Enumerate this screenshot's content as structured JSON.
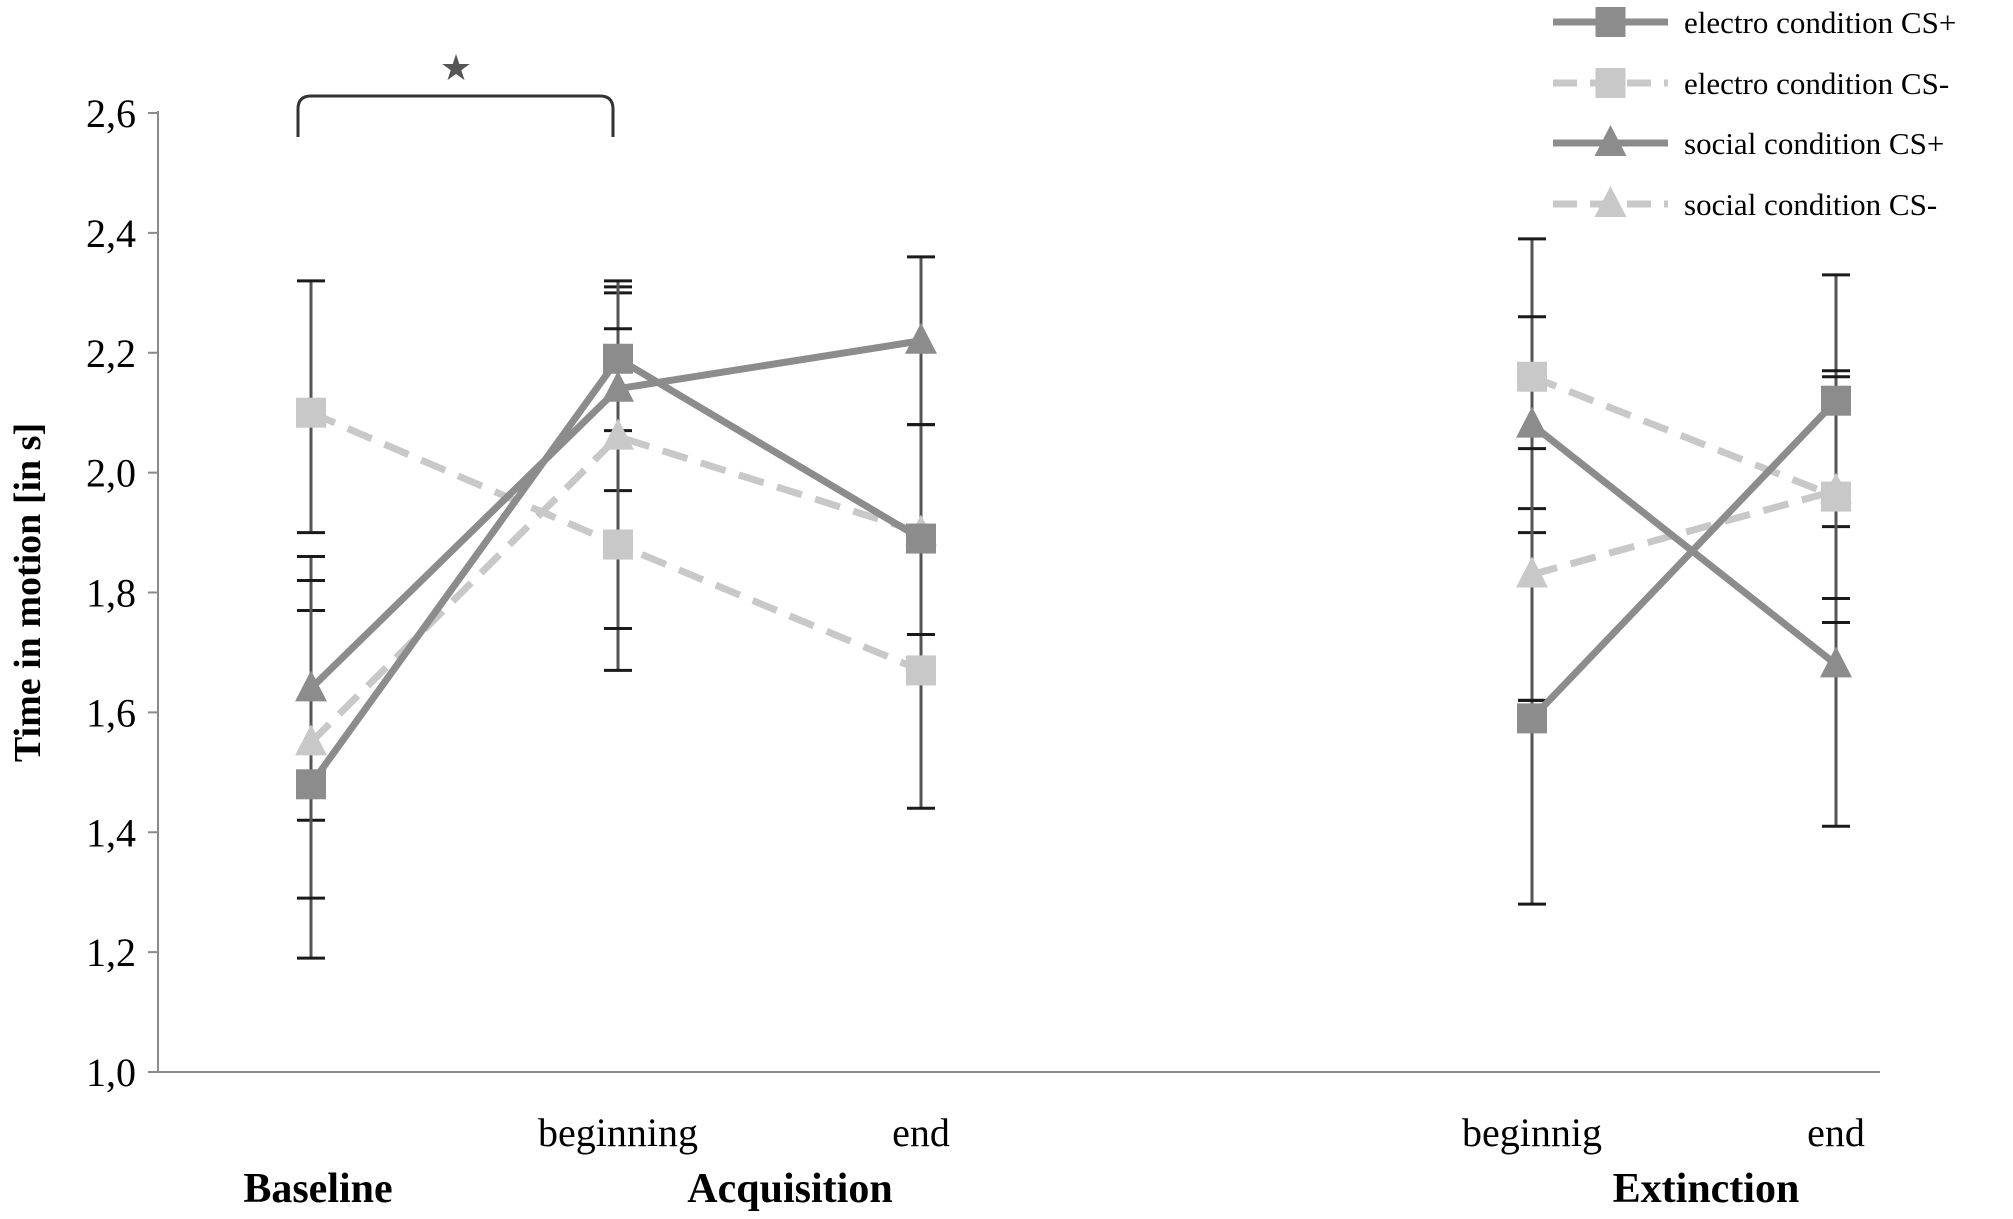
{
  "chart_data": {
    "type": "line",
    "ylabel": "Time in motion [in s]",
    "ylim": [
      1.0,
      2.6
    ],
    "yticks": [
      "1,0",
      "1,2",
      "1,4",
      "1,6",
      "1,8",
      "2,0",
      "2,2",
      "2,4",
      "2,6"
    ],
    "ytick_values": [
      1.0,
      1.2,
      1.4,
      1.6,
      1.8,
      2.0,
      2.2,
      2.4,
      2.6
    ],
    "x_positions": [
      "baseline",
      "acq_beginning",
      "acq_end",
      "ext_beginning",
      "ext_end"
    ],
    "x_tick_labels": [
      "",
      "beginning",
      "end",
      "beginnig",
      "end"
    ],
    "groups": [
      "Baseline",
      "Acquisition",
      "Extinction"
    ],
    "grid": false,
    "legend_position": "top-right",
    "significance_marker": "★",
    "series": [
      {
        "name": "electro condition CS+",
        "style": "solid",
        "marker": "square",
        "color": "#8c8c8c",
        "segments": [
          [
            0,
            1,
            2
          ],
          [
            3,
            4
          ]
        ],
        "values": [
          1.48,
          2.19,
          1.89,
          1.59,
          2.12
        ],
        "err_low": [
          1.19,
          2.07,
          1.73,
          1.28,
          1.91
        ],
        "err_high": [
          1.77,
          2.31,
          2.08,
          1.94,
          2.33
        ]
      },
      {
        "name": "electro condition CS-",
        "style": "dashed",
        "marker": "square",
        "color": "#c8c8c8",
        "segments": [
          [
            0,
            1,
            2
          ],
          [
            3,
            4
          ]
        ],
        "values": [
          2.1,
          1.88,
          1.67,
          2.16,
          1.96
        ],
        "err_low": [
          1.9,
          1.67,
          1.44,
          1.62,
          1.41
        ],
        "err_high": [
          2.32,
          2.3,
          1.91,
          2.39,
          2.17
        ]
      },
      {
        "name": "social condition CS+",
        "style": "solid",
        "marker": "triangle",
        "color": "#8c8c8c",
        "segments": [
          [
            0,
            1,
            2
          ],
          [
            3,
            4
          ]
        ],
        "values": [
          1.64,
          2.14,
          2.22,
          2.08,
          1.68
        ],
        "err_low": [
          1.42,
          1.97,
          1.88,
          1.9,
          1.75
        ],
        "err_high": [
          1.86,
          2.32,
          2.36,
          2.26,
          1.95
        ]
      },
      {
        "name": "social condition CS-",
        "style": "dashed",
        "marker": "triangle",
        "color": "#c8c8c8",
        "segments": [
          [
            0,
            1,
            2
          ],
          [
            3,
            4
          ]
        ],
        "values": [
          1.55,
          2.06,
          1.9,
          1.83,
          1.97
        ],
        "err_low": [
          1.29,
          1.74,
          1.73,
          1.62,
          1.79
        ],
        "err_high": [
          1.82,
          2.24,
          2.08,
          2.04,
          2.16
        ]
      }
    ]
  }
}
